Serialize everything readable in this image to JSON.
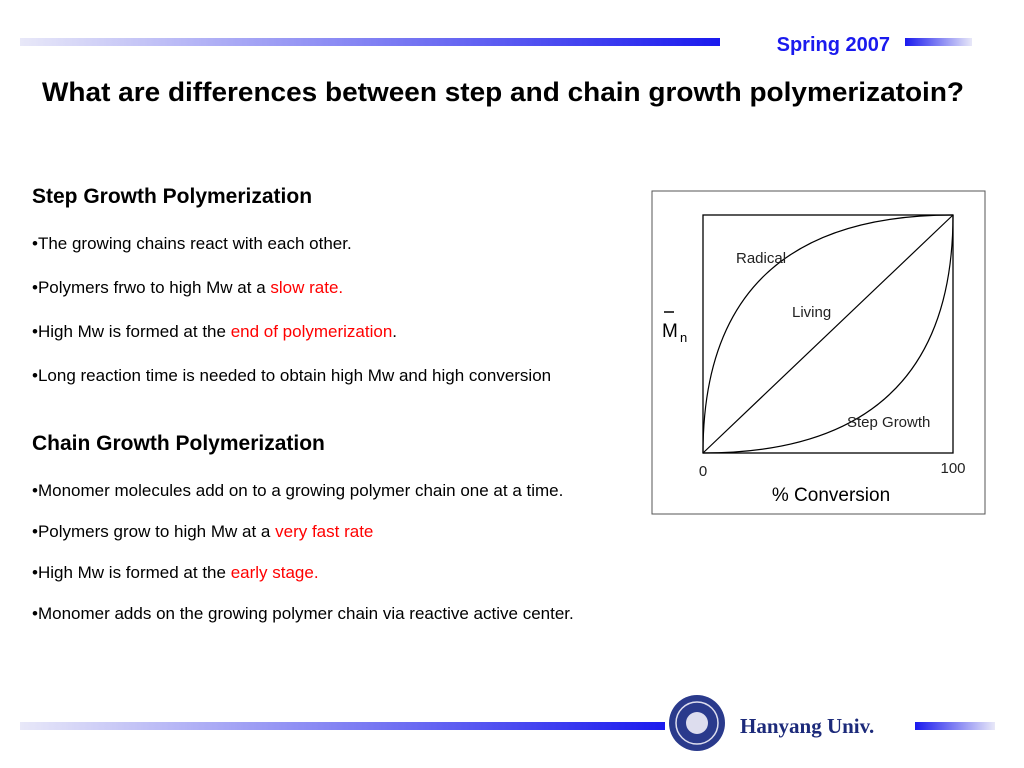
{
  "header": {
    "term": "Spring 2007"
  },
  "title": "What are differences between step and chain growth polymerizatoin?",
  "sections": [
    {
      "heading": "Step Growth Polymerization",
      "bullets": [
        [
          {
            "text": "•The growing chains react with each other."
          }
        ],
        [
          {
            "text": "•Polymers frwo to high Mw at a "
          },
          {
            "text": "slow rate.",
            "color": "#ff0000"
          }
        ],
        [
          {
            "text": "•High Mw is formed at the "
          },
          {
            "text": "end of polymerization",
            "color": "#ff0000"
          },
          {
            "text": "."
          }
        ],
        [
          {
            "text": "•Long reaction time is needed to obtain high Mw and high conversion"
          }
        ]
      ]
    },
    {
      "heading": "Chain Growth Polymerization",
      "bullets": [
        [
          {
            "text": "•Monomer molecules add on to a growing polymer chain one at a time."
          }
        ],
        [
          {
            "text": "•Polymers grow to high Mw  at a "
          },
          {
            "text": "very fast rate",
            "color": "#ff0000"
          }
        ],
        [
          {
            "text": "•High Mw is formed at the "
          },
          {
            "text": "early stage.",
            "color": "#ff0000"
          }
        ],
        [
          {
            "text": "•Monomer adds on the growing polymer chain via reactive active center."
          }
        ]
      ]
    }
  ],
  "figure": {
    "y_label": "M",
    "y_label_subscript": "n",
    "curves": [
      "Radical",
      "Living",
      "Step Growth"
    ],
    "x_start": "0",
    "x_end": "100",
    "x_label": "% Conversion"
  },
  "footer": {
    "institution": "Hanyang Univ."
  }
}
